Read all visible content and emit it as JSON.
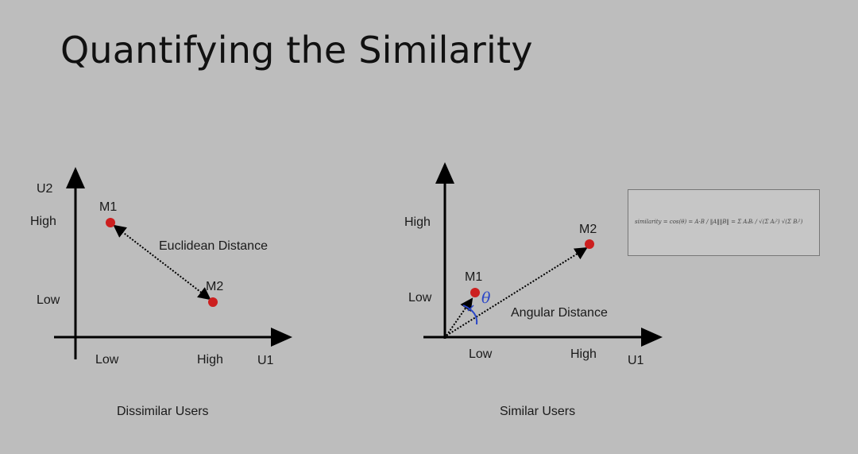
{
  "slide": {
    "title": "Quantifying the Similarity"
  },
  "left_diagram": {
    "y_axis_label": "U2",
    "x_axis_label": "U1",
    "y_ticks": [
      "High",
      "Low"
    ],
    "x_ticks": [
      "Low",
      "High"
    ],
    "points": [
      {
        "label": "M1"
      },
      {
        "label": "M2"
      }
    ],
    "edge_label": "Euclidean Distance",
    "caption": "Dissimilar Users"
  },
  "right_diagram": {
    "x_axis_label": "U1",
    "y_ticks": [
      "High",
      "Low"
    ],
    "x_ticks": [
      "Low",
      "High"
    ],
    "points": [
      {
        "label": "M1"
      },
      {
        "label": "M2"
      }
    ],
    "angle_label": "Angular Distance",
    "theta_symbol": "θ",
    "caption": "Similar Users"
  },
  "formula": {
    "text": "similarity = cos(θ) = A·B / ‖A‖‖B‖ = Σ AᵢBᵢ / √(Σ Aᵢ²) √(Σ Bᵢ²)"
  },
  "colors": {
    "background": "#bdbdbd",
    "point": "#cc1f1f",
    "annotation": "#2a46c8",
    "axis": "#000000"
  }
}
